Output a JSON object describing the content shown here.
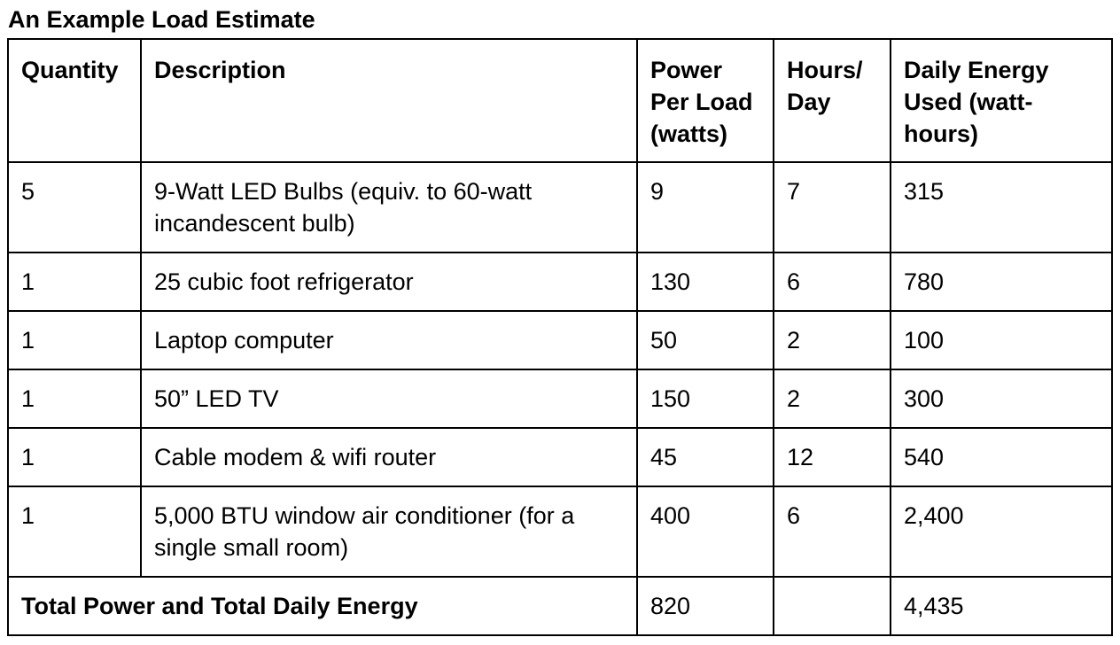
{
  "title": "An Example Load Estimate",
  "table": {
    "headers": {
      "quantity": "Quantity",
      "description": "Description",
      "power": "Power Per Load (watts)",
      "hours": "Hours/ Day",
      "energy": "Daily Energy Used (watt-hours)"
    },
    "rows": [
      {
        "quantity": "5",
        "description": "9-Watt LED Bulbs (equiv. to 60-watt incandescent bulb)",
        "power": "9",
        "hours": "7",
        "energy": "315"
      },
      {
        "quantity": "1",
        "description": "25 cubic foot refrigerator",
        "power": "130",
        "hours": "6",
        "energy": "780"
      },
      {
        "quantity": "1",
        "description": "Laptop computer",
        "power": "50",
        "hours": "2",
        "energy": "100"
      },
      {
        "quantity": "1",
        "description": "50” LED TV",
        "power": "150",
        "hours": "2",
        "energy": "300"
      },
      {
        "quantity": "1",
        "description": "Cable modem & wifi router",
        "power": "45",
        "hours": "12",
        "energy": "540"
      },
      {
        "quantity": "1",
        "description": "5,000 BTU window air conditioner (for a single small room)",
        "power": "400",
        "hours": "6",
        "energy": "2,400"
      }
    ],
    "total": {
      "label": "Total Power and Total Daily Energy",
      "power": "820",
      "hours": "",
      "energy": "4,435"
    }
  }
}
